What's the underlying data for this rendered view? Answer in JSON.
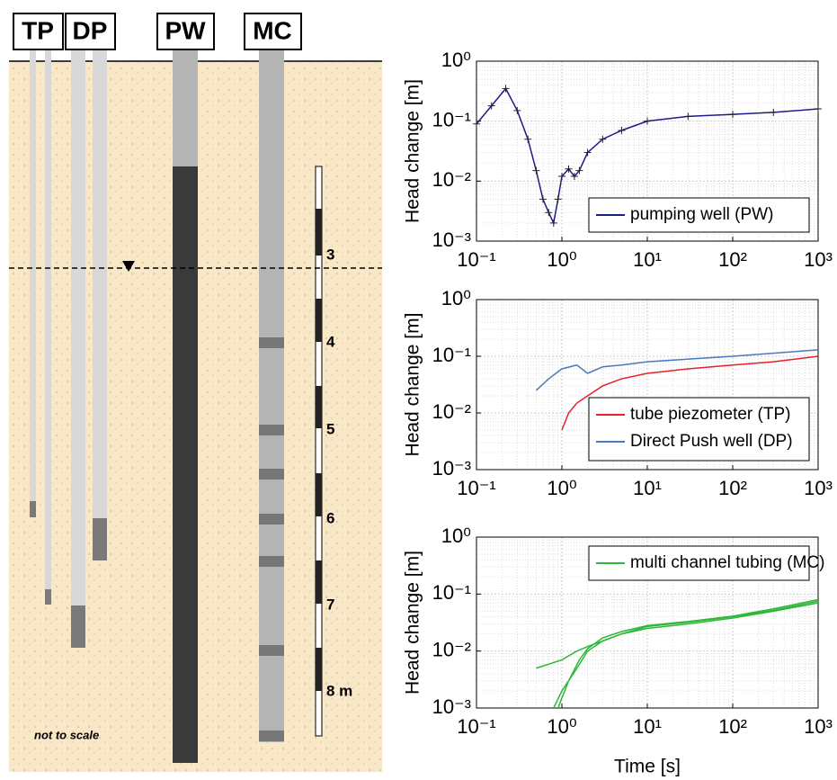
{
  "diagram": {
    "labels": [
      "TP",
      "DP",
      "PW",
      "MC"
    ],
    "depths": [
      "3",
      "4",
      "5",
      "6",
      "7",
      "8 m"
    ],
    "note": "not to scale"
  },
  "chart_data": [
    {
      "type": "line",
      "ylabel": "Head change [m]",
      "log": true,
      "grid": true,
      "legend": "lower right",
      "xlim": [
        0.1,
        1000
      ],
      "ylim": [
        0.001,
        1
      ],
      "xticks": [
        {
          "value": 0.1,
          "label": "10⁻¹"
        },
        {
          "value": 1,
          "label": "10⁰"
        },
        {
          "value": 10,
          "label": "10¹"
        },
        {
          "value": 100,
          "label": "10²"
        },
        {
          "value": 1000,
          "label": "10³"
        }
      ],
      "yticks": [
        {
          "value": 0.001,
          "label": "10⁻³"
        },
        {
          "value": 0.01,
          "label": "10⁻²"
        },
        {
          "value": 0.1,
          "label": "10⁻¹"
        },
        {
          "value": 1,
          "label": "10⁰"
        }
      ],
      "series": [
        {
          "name": "pumping well (PW)",
          "color": "#1c1c8a",
          "marker": "+",
          "x": [
            0.1,
            0.15,
            0.22,
            0.3,
            0.4,
            0.5,
            0.6,
            0.7,
            0.8,
            0.9,
            1.0,
            1.2,
            1.4,
            1.6,
            2,
            3,
            5,
            10,
            30,
            100,
            300,
            1000
          ],
          "values": [
            0.09,
            0.18,
            0.35,
            0.15,
            0.05,
            0.015,
            0.005,
            0.003,
            0.002,
            0.005,
            0.012,
            0.016,
            0.012,
            0.015,
            0.03,
            0.05,
            0.07,
            0.1,
            0.12,
            0.13,
            0.14,
            0.16
          ]
        }
      ]
    },
    {
      "type": "line",
      "ylabel": "Head change [m]",
      "log": true,
      "grid": true,
      "legend": "lower right",
      "xlim": [
        0.1,
        1000
      ],
      "ylim": [
        0.001,
        1
      ],
      "xticks": [
        {
          "value": 0.1,
          "label": "10⁻¹"
        },
        {
          "value": 1,
          "label": "10⁰"
        },
        {
          "value": 10,
          "label": "10¹"
        },
        {
          "value": 100,
          "label": "10²"
        },
        {
          "value": 1000,
          "label": "10³"
        }
      ],
      "yticks": [
        {
          "value": 0.001,
          "label": "10⁻³"
        },
        {
          "value": 0.01,
          "label": "10⁻²"
        },
        {
          "value": 0.1,
          "label": "10⁻¹"
        },
        {
          "value": 1,
          "label": "10⁰"
        }
      ],
      "series": [
        {
          "name": "tube piezometer (TP)",
          "color": "#e8202a",
          "x": [
            1,
            1.2,
            1.5,
            2,
            3,
            5,
            10,
            30,
            100,
            300,
            1000
          ],
          "values": [
            0.005,
            0.01,
            0.015,
            0.02,
            0.03,
            0.04,
            0.05,
            0.06,
            0.07,
            0.08,
            0.1
          ]
        },
        {
          "name": "Direct Push well (DP)",
          "color": "#4a7ab8",
          "x": [
            0.5,
            0.7,
            1,
            1.5,
            2,
            3,
            5,
            10,
            100,
            1000
          ],
          "values": [
            0.025,
            0.04,
            0.06,
            0.07,
            0.05,
            0.065,
            0.07,
            0.08,
            0.1,
            0.13
          ]
        }
      ]
    },
    {
      "type": "line",
      "ylabel": "Head change [m]",
      "xlabel": "Time [s]",
      "log": true,
      "grid": true,
      "legend": "upper right",
      "xlim": [
        0.1,
        1000
      ],
      "ylim": [
        0.001,
        1
      ],
      "xticks": [
        {
          "value": 0.1,
          "label": "10⁻¹"
        },
        {
          "value": 1,
          "label": "10⁰"
        },
        {
          "value": 10,
          "label": "10¹"
        },
        {
          "value": 100,
          "label": "10²"
        },
        {
          "value": 1000,
          "label": "10³"
        }
      ],
      "yticks": [
        {
          "value": 0.001,
          "label": "10⁻³"
        },
        {
          "value": 0.01,
          "label": "10⁻²"
        },
        {
          "value": 0.1,
          "label": "10⁻¹"
        },
        {
          "value": 1,
          "label": "10⁰"
        }
      ],
      "series": [
        {
          "name": "multi channel tubing (MC)",
          "color": "#2db83a",
          "x": [
            0.5,
            1,
            1.5,
            2,
            3,
            5,
            10,
            30,
            100,
            300,
            1000
          ],
          "values": [
            0.005,
            0.007,
            0.01,
            0.012,
            0.015,
            0.02,
            0.025,
            0.03,
            0.038,
            0.05,
            0.07
          ]
        },
        {
          "color": "#2db83a",
          "x": [
            0.8,
            1,
            1.5,
            2,
            3,
            5,
            10,
            30,
            100,
            300,
            1000
          ],
          "values": [
            0.001,
            0.002,
            0.005,
            0.01,
            0.015,
            0.02,
            0.027,
            0.032,
            0.04,
            0.052,
            0.075
          ]
        },
        {
          "color": "#2db83a",
          "x": [
            0.9,
            1.2,
            1.6,
            2,
            3,
            5,
            10,
            30,
            100,
            300,
            1000
          ],
          "values": [
            0.001,
            0.003,
            0.007,
            0.011,
            0.017,
            0.022,
            0.028,
            0.033,
            0.041,
            0.055,
            0.08
          ]
        }
      ]
    }
  ]
}
